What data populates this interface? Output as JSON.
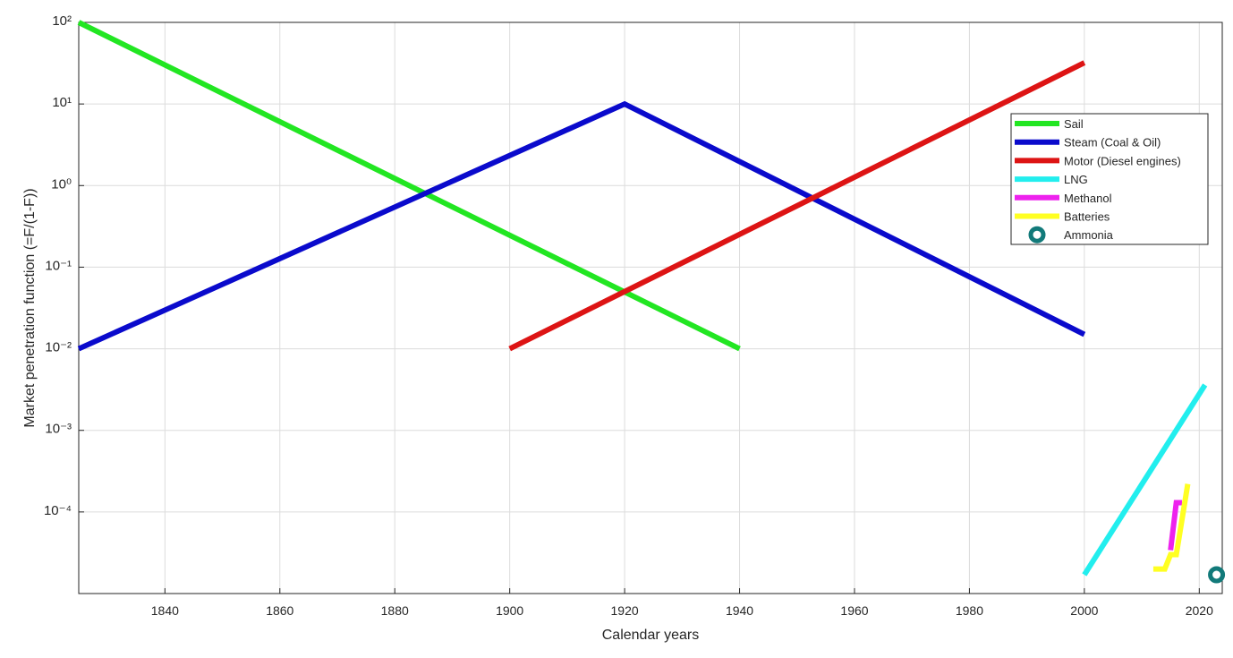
{
  "chart_data": {
    "type": "line",
    "xlabel": "Calendar years",
    "ylabel": "Market penetration function (=F/(1-F))",
    "log_y": true,
    "grid": true,
    "legend": "upper right",
    "xlim": [
      1825,
      2024
    ],
    "ylim": [
      1e-05,
      100
    ],
    "xticks": [
      1840,
      1860,
      1880,
      1900,
      1920,
      1940,
      1960,
      1980,
      2000,
      2020
    ],
    "yticks": [
      {
        "value": 0.0001,
        "label": "10⁻⁴"
      },
      {
        "value": 0.001,
        "label": "10⁻³"
      },
      {
        "value": 0.01,
        "label": "10⁻²"
      },
      {
        "value": 0.1,
        "label": "10⁻¹"
      },
      {
        "value": 1,
        "label": "10⁰"
      },
      {
        "value": 10,
        "label": "10¹"
      },
      {
        "value": 100,
        "label": "10²"
      }
    ],
    "series": [
      {
        "name": "Sail",
        "color": "#22e622",
        "x": [
          1825,
          1940
        ],
        "values": [
          100,
          0.01
        ]
      },
      {
        "name": "Steam (Coal & Oil)",
        "color": "#0a0acc",
        "x": [
          1825,
          1920,
          2000
        ],
        "values": [
          0.01,
          10,
          0.015
        ]
      },
      {
        "name": "Motor (Diesel engines)",
        "color": "#dd1414",
        "x": [
          1900,
          2000
        ],
        "values": [
          0.01,
          32
        ]
      },
      {
        "name": "LNG",
        "color": "#22eeee",
        "x": [
          2000,
          2021
        ],
        "values": [
          1.7e-05,
          0.0036
        ]
      },
      {
        "name": "Methanol",
        "color": "#ee22ee",
        "x": [
          2015,
          2016,
          2017
        ],
        "values": [
          3.4e-05,
          0.00013,
          0.00013
        ]
      },
      {
        "name": "Batteries",
        "color": "#ffff22",
        "x": [
          2012,
          2014,
          2015,
          2016,
          2018
        ],
        "values": [
          2e-05,
          2e-05,
          3e-05,
          3e-05,
          0.00022
        ]
      },
      {
        "name": "Ammonia",
        "color": "#127a7a",
        "mode": "marker",
        "x": [
          2023
        ],
        "values": [
          1.7e-05
        ]
      }
    ]
  }
}
